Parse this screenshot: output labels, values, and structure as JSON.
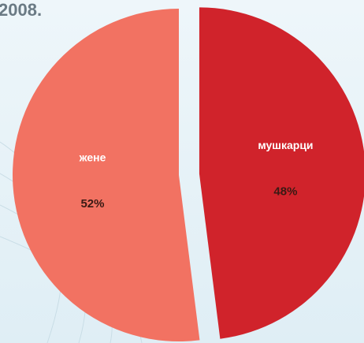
{
  "chart_data": {
    "type": "pie",
    "title": "2008.",
    "categories": [
      "мушкарци",
      "жене"
    ],
    "values": [
      48,
      52
    ],
    "value_labels": [
      "48%",
      "52%"
    ],
    "colors": [
      "#d0232b",
      "#f27262"
    ]
  }
}
